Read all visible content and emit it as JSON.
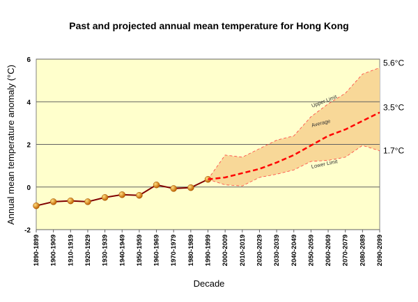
{
  "chart_data": {
    "type": "line",
    "title": "Past and projected annual mean temperature for Hong Kong",
    "x_label": "Decade",
    "y_label": "Annual mean temperature anomaly (°C)",
    "categories": [
      "1890-1899",
      "1900-1909",
      "1910-1919",
      "1920-1929",
      "1930-1939",
      "1940-1949",
      "1950-1959",
      "1960-1969",
      "1970-1979",
      "1980-1989",
      "1990-1999",
      "2000-2009",
      "2010-2019",
      "2020-2029",
      "2030-2039",
      "2040-2049",
      "2050-2059",
      "2060-2069",
      "2070-2079",
      "2080-2089",
      "2090-2099"
    ],
    "ylim": [
      -2,
      6
    ],
    "yticks": [
      -2,
      0,
      2,
      4,
      6
    ],
    "grid": true,
    "series": [
      {
        "color": "#800000",
        "marker_color": "#f0a020",
        "values": [
          -0.88,
          -0.69,
          -0.65,
          -0.69,
          -0.49,
          -0.36,
          -0.39,
          0.1,
          -0.07,
          -0.03,
          0.36,
          null,
          null,
          null,
          null,
          null,
          null,
          null,
          null,
          null,
          null
        ]
      },
      {
        "name": "Upper Limit",
        "color": "#ff4040",
        "values": [
          null,
          null,
          null,
          null,
          null,
          null,
          null,
          null,
          null,
          null,
          0.36,
          1.5,
          1.4,
          1.8,
          2.2,
          2.4,
          3.3,
          3.9,
          4.4,
          5.3,
          5.6
        ],
        "end_label": "5.6°C"
      },
      {
        "name": "Average",
        "color": "#ff0000",
        "values": [
          null,
          null,
          null,
          null,
          null,
          null,
          null,
          null,
          null,
          null,
          0.36,
          0.45,
          0.65,
          0.85,
          1.15,
          1.5,
          1.95,
          2.4,
          2.7,
          3.1,
          3.5
        ],
        "end_label": "3.5°C"
      },
      {
        "name": "Lower Limit",
        "color": "#ff4040",
        "values": [
          null,
          null,
          null,
          null,
          null,
          null,
          null,
          null,
          null,
          null,
          0.36,
          0.1,
          0.05,
          0.45,
          0.6,
          0.8,
          1.2,
          1.25,
          1.4,
          1.95,
          1.7
        ],
        "end_label": "1.7°C"
      }
    ],
    "band_color": "#f8d898",
    "plot_background": "#ffffcc"
  }
}
